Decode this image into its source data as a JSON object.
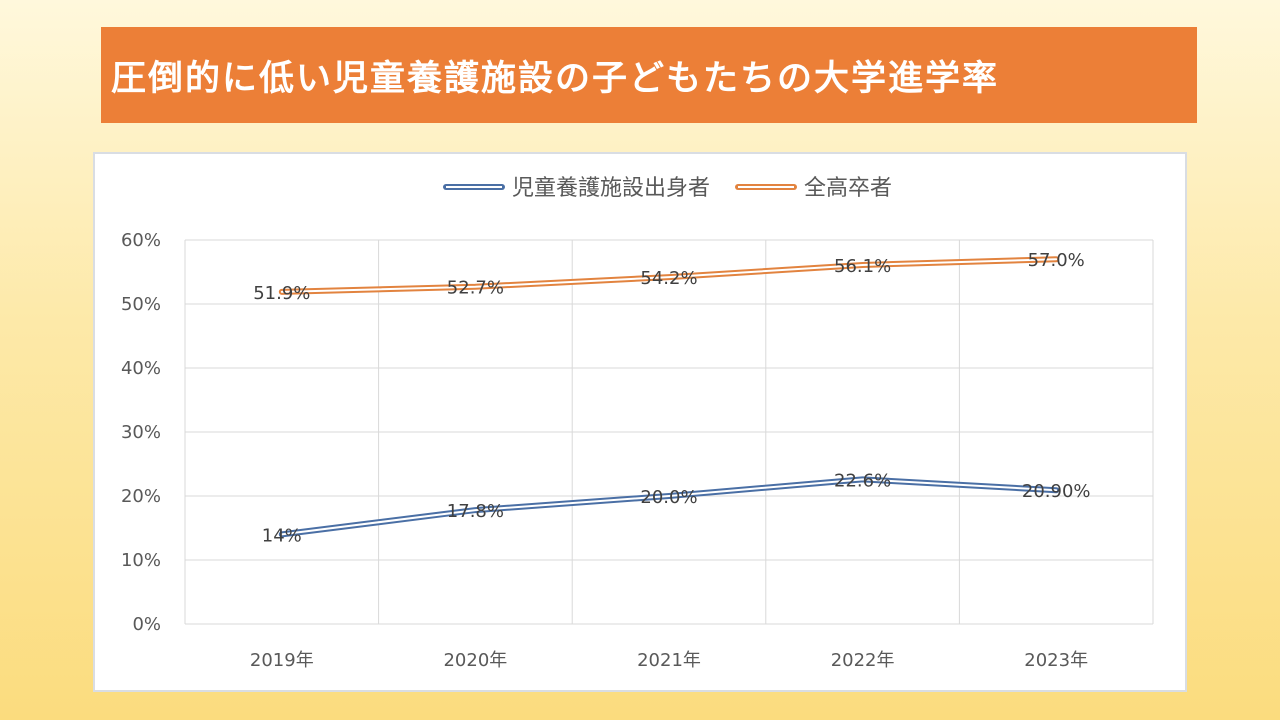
{
  "title": "圧倒的に低い児童養護施設の子どもたちの大学進学率",
  "colors": {
    "banner": "#ec7f37",
    "series_blue": "#4a6fa5",
    "series_orange": "#e2833f",
    "grid": "#d9d9d9"
  },
  "chart_data": {
    "type": "line",
    "categories": [
      "2019年",
      "2020年",
      "2021年",
      "2022年",
      "2023年"
    ],
    "series": [
      {
        "name": "児童養護施設出身者",
        "values": [
          14.0,
          17.8,
          20.0,
          22.6,
          20.9
        ],
        "labels": [
          "14%",
          "17.8%",
          "20.0%",
          "22.6%",
          "20.90%"
        ],
        "color": "#4a6fa5"
      },
      {
        "name": "全高卒者",
        "values": [
          51.9,
          52.7,
          54.2,
          56.1,
          57.0
        ],
        "labels": [
          "51.9%",
          "52.7%",
          "54.2%",
          "56.1%",
          "57.0%"
        ],
        "color": "#e2833f"
      }
    ],
    "ylim": [
      0,
      60
    ],
    "yticks": [
      0,
      10,
      20,
      30,
      40,
      50,
      60
    ],
    "ytick_labels": [
      "0%",
      "10%",
      "20%",
      "30%",
      "40%",
      "50%",
      "60%"
    ],
    "grid": true,
    "legend_position": "top"
  }
}
